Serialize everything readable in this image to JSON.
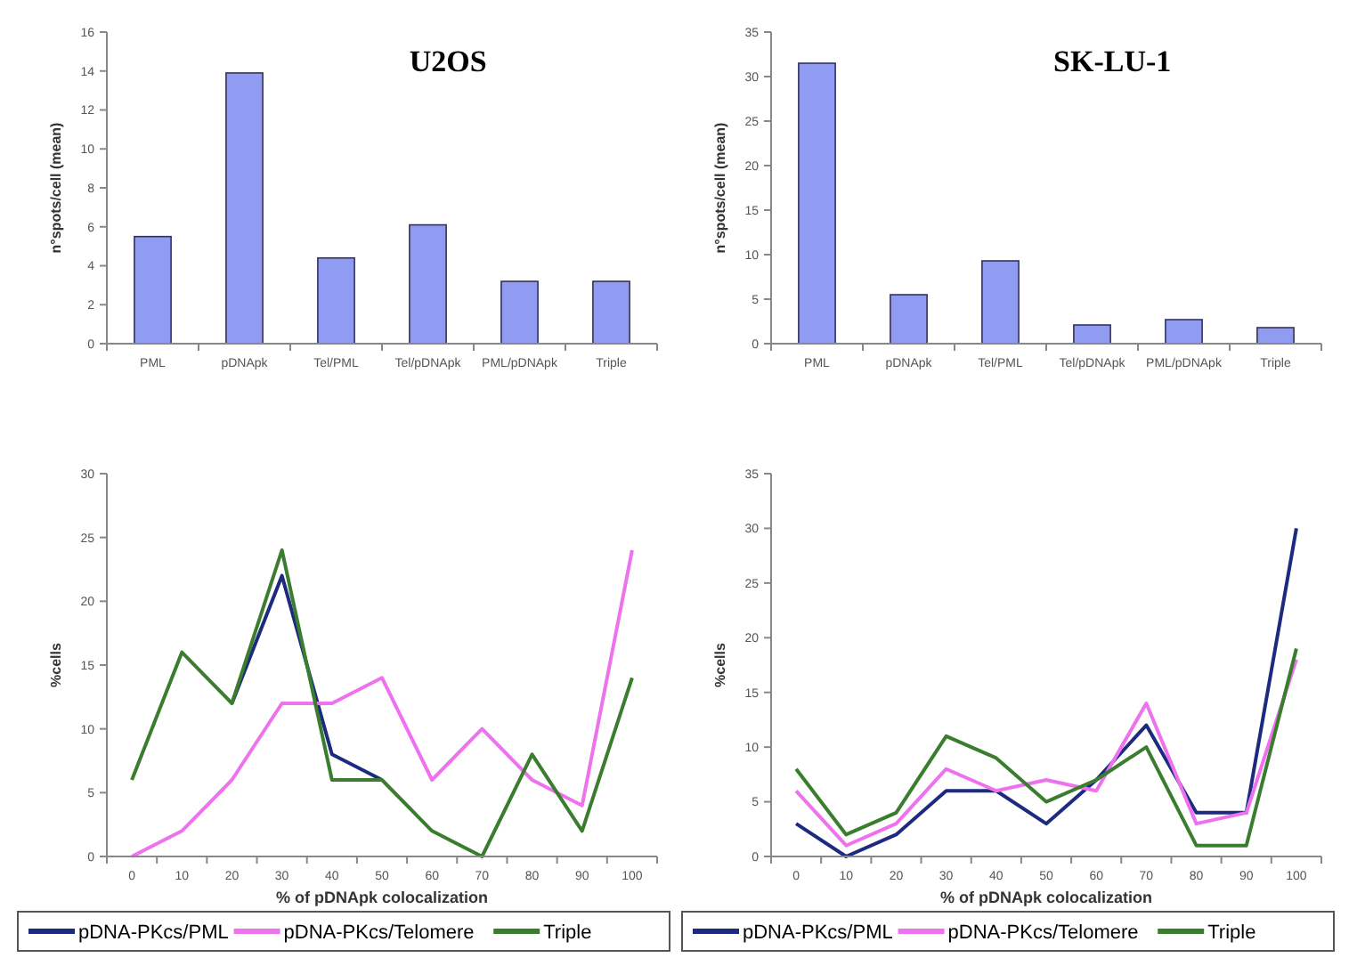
{
  "chart_data": [
    {
      "type": "bar",
      "title": "U2OS",
      "ylabel": "n°spots/cell (mean)",
      "categories": [
        "PML",
        "pDNApk",
        "Tel/PML",
        "Tel/pDNApk",
        "PML/pDNApk",
        "Triple"
      ],
      "values": [
        5.5,
        13.9,
        4.4,
        6.1,
        3.2,
        3.2
      ],
      "color": "#8f9cf2",
      "ylim": [
        0,
        16
      ],
      "yticks": [
        0,
        2,
        4,
        6,
        8,
        10,
        12,
        14,
        16
      ],
      "grid": false,
      "legend": false
    },
    {
      "type": "bar",
      "title": "SK-LU-1",
      "ylabel": "n°spots/cell (mean)",
      "categories": [
        "PML",
        "pDNApk",
        "Tel/PML",
        "Tel/pDNApk",
        "PML/pDNApk",
        "Triple"
      ],
      "values": [
        31.5,
        5.5,
        9.3,
        2.1,
        2.7,
        1.8
      ],
      "color": "#8f9cf2",
      "ylim": [
        0,
        35
      ],
      "yticks": [
        0,
        5,
        10,
        15,
        20,
        25,
        30,
        35
      ],
      "grid": false,
      "legend": false
    },
    {
      "type": "line",
      "xlabel": "% of pDNApk colocalization",
      "ylabel": "%cells",
      "categories": [
        "0",
        "10",
        "20",
        "30",
        "40",
        "50",
        "60",
        "70",
        "80",
        "90",
        "100"
      ],
      "ylim": [
        0,
        30
      ],
      "yticks": [
        0,
        5,
        10,
        15,
        20,
        25,
        30
      ],
      "grid": false,
      "legend": "bottom",
      "marker": "none",
      "line_style": "solid",
      "series": [
        {
          "name": "pDNA-PKcs/PML",
          "color": "#1c2a80",
          "values": [
            null,
            null,
            12,
            22,
            8,
            6,
            null,
            null,
            null,
            null,
            null
          ]
        },
        {
          "name": "pDNA-PKcs/Telomere",
          "color": "#ee72ee",
          "values": [
            0,
            2,
            6,
            12,
            12,
            14,
            6,
            10,
            6,
            4,
            24
          ]
        },
        {
          "name": "Triple",
          "color": "#3b7d2f",
          "values": [
            6,
            16,
            12,
            24,
            6,
            6,
            2,
            0,
            8,
            2,
            14
          ]
        }
      ]
    },
    {
      "type": "line",
      "xlabel": "% of pDNApk colocalization",
      "ylabel": "%cells",
      "categories": [
        "0",
        "10",
        "20",
        "30",
        "40",
        "50",
        "60",
        "70",
        "80",
        "90",
        "100"
      ],
      "ylim": [
        0,
        35
      ],
      "yticks": [
        0,
        5,
        10,
        15,
        20,
        25,
        30,
        35
      ],
      "grid": false,
      "legend": "bottom",
      "marker": "none",
      "line_style": "solid",
      "series": [
        {
          "name": "pDNA-PKcs/PML",
          "color": "#1c2a80",
          "values": [
            3,
            0,
            2,
            6,
            6,
            3,
            7,
            12,
            4,
            4,
            30
          ]
        },
        {
          "name": "pDNA-PKcs/Telomere",
          "color": "#ee72ee",
          "values": [
            6,
            1,
            3,
            8,
            6,
            7,
            6,
            14,
            3,
            4,
            18
          ]
        },
        {
          "name": "Triple",
          "color": "#3b7d2f",
          "values": [
            8,
            2,
            4,
            11,
            9,
            5,
            7,
            10,
            1,
            1,
            19
          ]
        }
      ]
    }
  ]
}
